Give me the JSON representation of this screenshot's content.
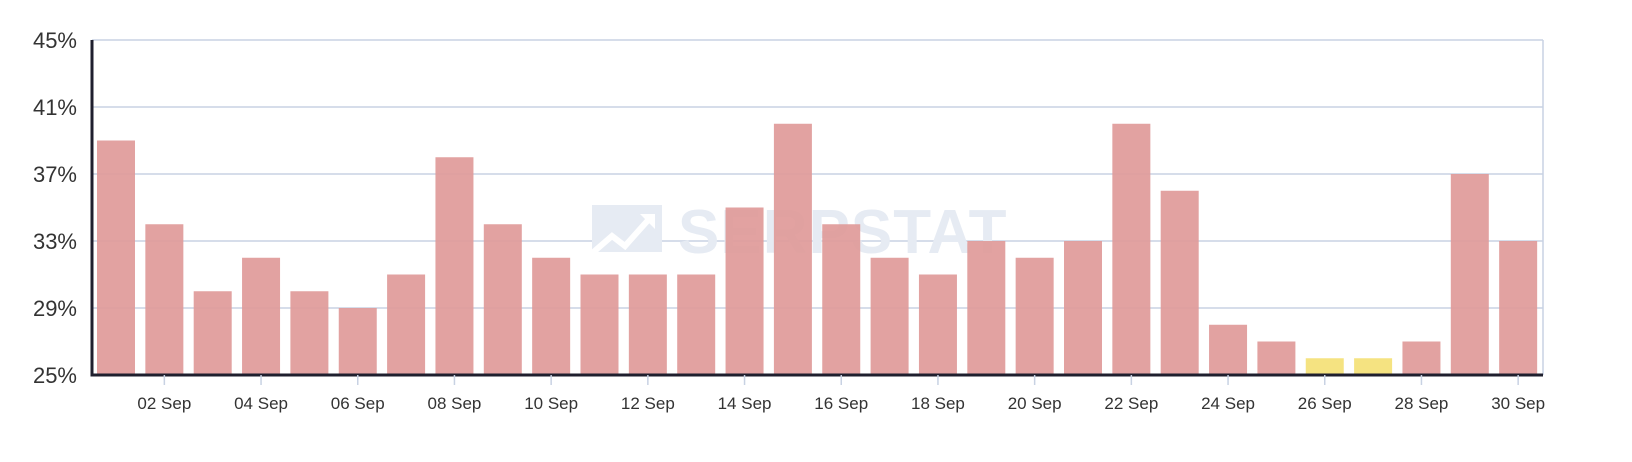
{
  "watermark": {
    "text": "SERPSTAT"
  },
  "colors": {
    "bar": "#e09a99",
    "bar_highlight": "#f4e27a",
    "grid": "#c8d2e3",
    "axis": "#1f1f2e",
    "watermark": "#e6ebf3"
  },
  "chart_data": {
    "type": "bar",
    "x": [
      "01 Sep",
      "02 Sep",
      "03 Sep",
      "04 Sep",
      "05 Sep",
      "06 Sep",
      "07 Sep",
      "08 Sep",
      "09 Sep",
      "10 Sep",
      "11 Sep",
      "12 Sep",
      "13 Sep",
      "14 Sep",
      "15 Sep",
      "16 Sep",
      "17 Sep",
      "18 Sep",
      "19 Sep",
      "20 Sep",
      "21 Sep",
      "22 Sep",
      "23 Sep",
      "24 Sep",
      "25 Sep",
      "26 Sep",
      "27 Sep",
      "28 Sep",
      "29 Sep",
      "30 Sep"
    ],
    "values": [
      39,
      34,
      30,
      32,
      30,
      29,
      31,
      38,
      34,
      32,
      31,
      31,
      31,
      35,
      40,
      34,
      32,
      31,
      33,
      32,
      33,
      40,
      36,
      28,
      27,
      26,
      26,
      27,
      37,
      33
    ],
    "highlighted": [
      "26 Sep",
      "27 Sep"
    ],
    "x_tick_labels": [
      "02 Sep",
      "04 Sep",
      "06 Sep",
      "08 Sep",
      "10 Sep",
      "12 Sep",
      "14 Sep",
      "16 Sep",
      "18 Sep",
      "20 Sep",
      "22 Sep",
      "24 Sep",
      "26 Sep",
      "28 Sep",
      "30 Sep"
    ],
    "y_ticks": [
      25,
      29,
      33,
      37,
      41,
      45
    ],
    "y_tick_labels": [
      "25%",
      "29%",
      "33%",
      "37%",
      "41%",
      "45%"
    ],
    "ylim": [
      25,
      45
    ],
    "title": "",
    "xlabel": "",
    "ylabel": "",
    "grid": true,
    "legend": "none"
  }
}
